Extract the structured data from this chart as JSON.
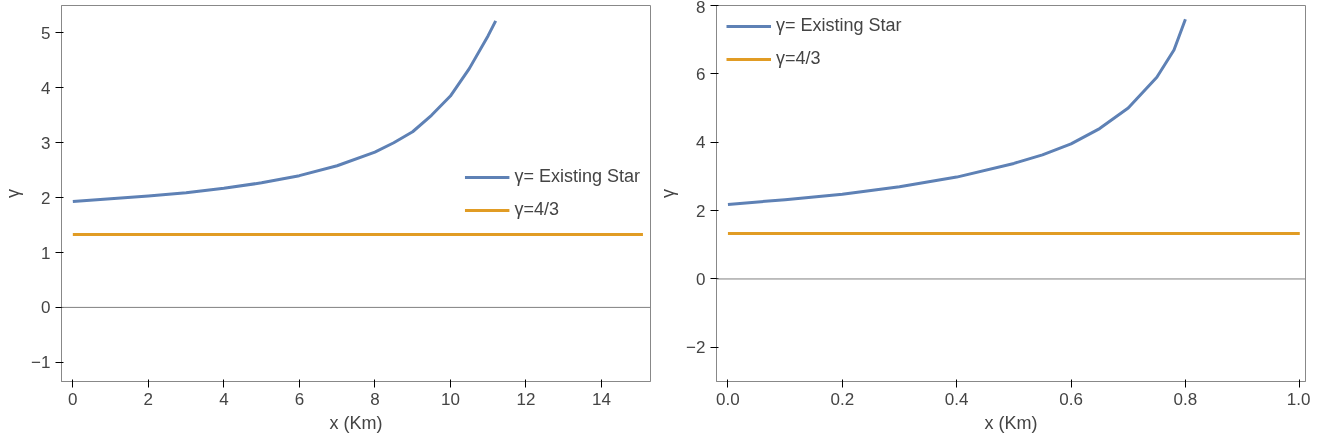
{
  "chart_data": [
    {
      "type": "line",
      "xlabel": "x (Km)",
      "ylabel": "γ",
      "xlim": [
        -0.3,
        15.3
      ],
      "ylim": [
        -1.35,
        5.5
      ],
      "xticks": [
        0,
        2,
        4,
        6,
        8,
        10,
        12,
        14
      ],
      "yticks": [
        {
          "value": -1,
          "label": "−1"
        },
        0,
        1,
        2,
        3,
        4,
        5
      ],
      "legend": "right",
      "grid": false,
      "marker": "none",
      "line_style": "solid",
      "ref_lines": [
        {
          "axis": "y",
          "value": 0,
          "color": "#808080"
        }
      ],
      "series": [
        {
          "name": "γ= Existing Star",
          "color": "#5e81b5",
          "x": [
            0,
            1,
            2,
            3,
            4,
            5,
            6,
            7,
            8,
            8.5,
            9,
            9.5,
            10,
            10.5,
            11,
            11.2
          ],
          "values": [
            1.93,
            1.98,
            2.03,
            2.09,
            2.17,
            2.27,
            2.4,
            2.58,
            2.83,
            3.0,
            3.2,
            3.5,
            3.85,
            4.35,
            4.95,
            5.22
          ]
        },
        {
          "name": "γ=4/3",
          "color": "#e19c24",
          "x": [
            0,
            15.1
          ],
          "values": [
            1.33,
            1.33
          ]
        }
      ]
    },
    {
      "type": "line",
      "xlabel": "x (Km)",
      "ylabel": "γ",
      "xlim": [
        -0.02,
        1.01
      ],
      "ylim": [
        -3,
        8
      ],
      "xticks": [
        {
          "value": 0,
          "label": "0.0"
        },
        0.2,
        0.4,
        0.6,
        0.8,
        {
          "value": 1,
          "label": "1.0"
        }
      ],
      "yticks": [
        {
          "value": -2,
          "label": "−2"
        },
        0,
        2,
        4,
        6,
        8
      ],
      "legend": "top left",
      "grid": false,
      "marker": "none",
      "line_style": "solid",
      "ref_lines": [
        {
          "axis": "y",
          "value": 0,
          "color": "#808080"
        }
      ],
      "series": [
        {
          "name": "γ= Existing Star",
          "color": "#5e81b5",
          "x": [
            0,
            0.1,
            0.2,
            0.3,
            0.4,
            0.5,
            0.55,
            0.6,
            0.65,
            0.7,
            0.75,
            0.78,
            0.8
          ],
          "values": [
            2.18,
            2.32,
            2.48,
            2.7,
            2.98,
            3.38,
            3.63,
            3.95,
            4.4,
            5.0,
            5.9,
            6.7,
            7.6
          ]
        },
        {
          "name": "γ=4/3",
          "color": "#e19c24",
          "x": [
            0,
            1
          ],
          "values": [
            1.33,
            1.33
          ]
        }
      ]
    }
  ]
}
